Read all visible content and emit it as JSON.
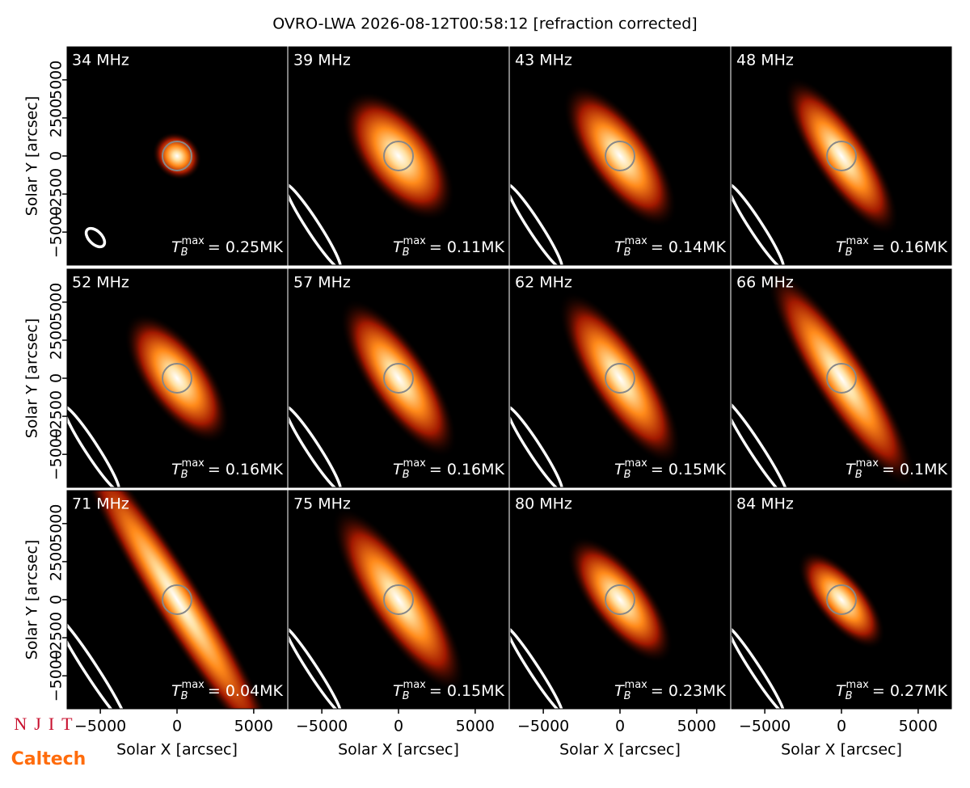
{
  "chart_data": {
    "type": "image_grid",
    "title": "OVRO-LWA 2026-08-12T00:58:12 [refraction corrected]",
    "xlabel": "Solar X [arcsec]",
    "ylabel": "Solar Y [arcsec]",
    "xlim": [
      -7168,
      7168
    ],
    "ylim": [
      -7168,
      7168
    ],
    "xticks": [
      {
        "value": -5000,
        "label": "−5000"
      },
      0,
      5000
    ],
    "yticks": [
      {
        "value": -5000,
        "label": "−5000"
      },
      {
        "value": -2500,
        "label": "−2500"
      },
      0,
      2500,
      5000
    ],
    "tb_symbol": "T",
    "tb_sub": "B",
    "tb_sup": "max",
    "panels": [
      {
        "title": "34 MHz",
        "annotation": "= 0.25MK"
      },
      {
        "title": "39 MHz",
        "annotation": "= 0.11MK"
      },
      {
        "title": "43 MHz",
        "annotation": "= 0.14MK"
      },
      {
        "title": "48 MHz",
        "annotation": "= 0.16MK"
      },
      {
        "title": "52 MHz",
        "annotation": "= 0.16MK"
      },
      {
        "title": "57 MHz",
        "annotation": "= 0.16MK"
      },
      {
        "title": "62 MHz",
        "annotation": "= 0.15MK"
      },
      {
        "title": "66 MHz",
        "annotation": "= 0.1MK"
      },
      {
        "title": "71 MHz",
        "annotation": "= 0.04MK"
      },
      {
        "title": "75 MHz",
        "annotation": "= 0.15MK"
      },
      {
        "title": "80 MHz",
        "annotation": "= 0.23MK"
      },
      {
        "title": "84 MHz",
        "annotation": "= 0.27MK"
      }
    ]
  },
  "logos": {
    "njit": "NJIT",
    "caltech": "Caltech"
  }
}
